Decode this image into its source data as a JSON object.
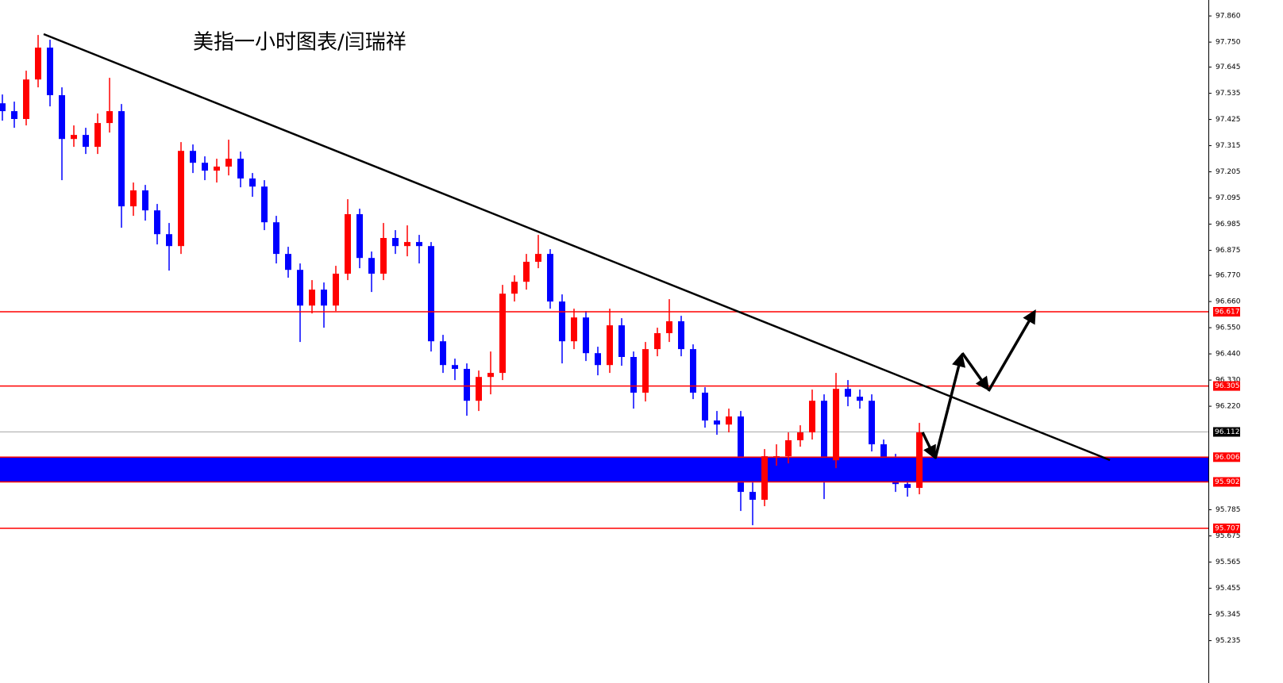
{
  "chart_data": {
    "type": "candlestick",
    "title": "美指一小时图表/闫瑞祥",
    "open": [
      97.493,
      97.46,
      97.427,
      97.593,
      97.727,
      97.527,
      97.343,
      97.36,
      97.31,
      97.41,
      97.46,
      97.06,
      97.127,
      97.043,
      96.943,
      96.893,
      97.293,
      97.243,
      97.21,
      97.227,
      97.26,
      97.177,
      97.143,
      96.993,
      96.86,
      96.793,
      96.643,
      96.71,
      96.643,
      96.777,
      97.027,
      96.843,
      96.777,
      96.927,
      96.893,
      96.91,
      96.893,
      96.493,
      96.393,
      96.377,
      96.243,
      96.343,
      96.36,
      96.693,
      96.743,
      96.827,
      96.86,
      96.66,
      96.493,
      96.593,
      96.443,
      96.393,
      96.56,
      96.427,
      96.277,
      96.46,
      96.527,
      96.577,
      96.46,
      96.277,
      96.16,
      96.143,
      96.177,
      95.86,
      95.827,
      96.01,
      96.01,
      96.077,
      96.11,
      96.243,
      95.993,
      96.293,
      96.26,
      96.243,
      96.06,
      95.993,
      95.893,
      95.877
    ],
    "high": [
      97.53,
      97.5,
      97.63,
      97.78,
      97.76,
      97.56,
      97.4,
      97.39,
      97.45,
      97.6,
      97.49,
      97.16,
      97.15,
      97.07,
      96.99,
      97.33,
      97.32,
      97.27,
      97.26,
      97.34,
      97.29,
      97.2,
      97.17,
      97.02,
      96.89,
      96.82,
      96.75,
      96.74,
      96.81,
      97.09,
      97.05,
      96.87,
      96.99,
      96.96,
      96.98,
      96.94,
      96.91,
      96.52,
      96.42,
      96.4,
      96.37,
      96.45,
      96.73,
      96.77,
      96.86,
      96.94,
      96.88,
      96.69,
      96.63,
      96.62,
      96.47,
      96.63,
      96.59,
      96.45,
      96.49,
      96.55,
      96.67,
      96.6,
      96.48,
      96.3,
      96.2,
      96.21,
      96.2,
      95.9,
      96.04,
      96.06,
      96.11,
      96.14,
      96.29,
      96.27,
      96.36,
      96.33,
      96.29,
      96.27,
      96.08,
      96.02,
      95.92,
      96.15
    ],
    "low": [
      97.42,
      97.39,
      97.4,
      97.56,
      97.48,
      97.17,
      97.31,
      97.28,
      97.28,
      97.37,
      96.97,
      97.02,
      97.0,
      96.9,
      96.79,
      96.86,
      97.2,
      97.17,
      97.16,
      97.19,
      97.14,
      97.1,
      96.96,
      96.82,
      96.76,
      96.49,
      96.61,
      96.55,
      96.62,
      96.75,
      96.8,
      96.7,
      96.75,
      96.86,
      96.85,
      96.82,
      96.45,
      96.36,
      96.33,
      96.18,
      96.2,
      96.27,
      96.33,
      96.66,
      96.71,
      96.8,
      96.63,
      96.4,
      96.46,
      96.41,
      96.35,
      96.36,
      96.39,
      96.21,
      96.24,
      96.43,
      96.49,
      96.43,
      96.25,
      96.13,
      96.1,
      96.11,
      95.78,
      95.72,
      95.8,
      95.97,
      95.98,
      96.05,
      96.08,
      95.83,
      95.96,
      96.22,
      96.21,
      96.03,
      95.95,
      95.86,
      95.84,
      95.85
    ],
    "close": [
      97.46,
      97.427,
      97.593,
      97.727,
      97.527,
      97.343,
      97.36,
      97.31,
      97.41,
      97.46,
      97.06,
      97.127,
      97.043,
      96.943,
      96.893,
      97.293,
      97.243,
      97.21,
      97.227,
      97.26,
      97.177,
      97.143,
      96.993,
      96.86,
      96.793,
      96.643,
      96.71,
      96.643,
      96.777,
      97.027,
      96.843,
      96.777,
      96.927,
      96.893,
      96.91,
      96.893,
      96.493,
      96.393,
      96.377,
      96.243,
      96.343,
      96.36,
      96.693,
      96.743,
      96.827,
      96.86,
      96.66,
      96.493,
      96.593,
      96.443,
      96.393,
      96.56,
      96.427,
      96.277,
      96.46,
      96.527,
      96.577,
      96.46,
      96.277,
      96.16,
      96.143,
      96.177,
      95.86,
      95.827,
      96.01,
      96.01,
      96.077,
      96.11,
      96.243,
      95.993,
      96.293,
      96.26,
      96.243,
      96.06,
      95.993,
      95.893,
      95.877,
      96.11
    ],
    "up_color": "#ff0000",
    "down_color": "#0000ff",
    "ylim": [
      95.057,
      97.927
    ],
    "yticks": [
      {
        "value": 97.86,
        "label": "97.860"
      },
      {
        "value": 97.75,
        "label": "97.750"
      },
      97.645,
      97.535,
      97.425,
      97.315,
      97.205,
      97.095,
      96.985,
      96.875,
      {
        "value": 96.77,
        "label": "96.770"
      },
      {
        "value": 96.66,
        "label": "96.660"
      },
      {
        "value": 96.55,
        "label": "96.550"
      },
      {
        "value": 96.44,
        "label": "96.440"
      },
      {
        "value": 96.33,
        "label": "96.330"
      },
      {
        "value": 96.22,
        "label": "96.220"
      },
      95.785,
      95.675,
      95.565,
      95.455,
      95.345,
      95.235
    ],
    "levels": [
      96.617,
      96.305,
      96.006,
      95.902,
      95.707
    ],
    "level_color": "#ff0000",
    "last_price": 96.112,
    "zone_color": "#0000ff"
  }
}
